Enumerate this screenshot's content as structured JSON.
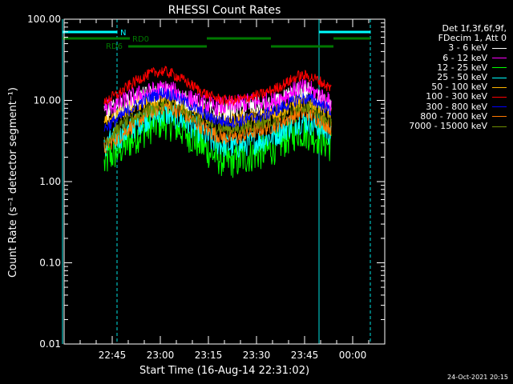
{
  "chart_data": {
    "type": "line",
    "title": "RHESSI Count Rates",
    "xlabel": "Start Time (16-Aug-14 22:31:02)",
    "ylabel": "Count Rate (s⁻¹ detector segment⁻¹)",
    "y_scale": "log",
    "ylim": [
      0.01,
      100.0
    ],
    "x_units": "minutes after 22:30",
    "xlim": [
      0,
      100
    ],
    "x_ticks": [
      {
        "x": 15,
        "label": "22:45"
      },
      {
        "x": 30,
        "label": "23:00"
      },
      {
        "x": 45,
        "label": "23:15"
      },
      {
        "x": 60,
        "label": "23:30"
      },
      {
        "x": 75,
        "label": "23:45"
      },
      {
        "x": 90,
        "label": "00:00"
      }
    ],
    "y_ticks": [
      {
        "y": 100,
        "label": "100.00"
      },
      {
        "y": 10,
        "label": "10.00"
      },
      {
        "y": 1,
        "label": "1.00"
      },
      {
        "y": 0.1,
        "label": "0.10"
      },
      {
        "y": 0.01,
        "label": "0.01"
      }
    ],
    "legend_header": [
      "Det 1f,3f,6f,9f,",
      "FDecim 1, Att 0"
    ],
    "legend_position": "right, outside plot",
    "x_samples": [
      12.5,
      14,
      17,
      20,
      24,
      28,
      31,
      34,
      38,
      42,
      46,
      50,
      54,
      58,
      62,
      66,
      70,
      73,
      76,
      79,
      82,
      83.3
    ],
    "series": [
      {
        "name": "3 - 6 keV",
        "color": "#ffffff",
        "values": [
          6.5,
          7.5,
          8.2,
          9.5,
          11,
          12,
          13,
          12,
          10,
          8.5,
          7.5,
          7.5,
          8,
          8.5,
          8.5,
          9,
          11,
          13,
          13,
          11,
          9,
          8.5
        ]
      },
      {
        "name": "6 - 12 keV",
        "color": "#ff00ff",
        "values": [
          8,
          8.5,
          9,
          10.5,
          12,
          13,
          14,
          13,
          11,
          9.5,
          8.5,
          8.5,
          9,
          9.5,
          9.5,
          10,
          12,
          14,
          14,
          12,
          10,
          9
        ]
      },
      {
        "name": "12 - 25 keV",
        "color": "#00ff00",
        "values": [
          1.6,
          2,
          2.4,
          3,
          4,
          5,
          5.5,
          5,
          4,
          3,
          2.2,
          1.8,
          1.8,
          2.1,
          2.3,
          2.7,
          3.5,
          4.2,
          4,
          3.5,
          3,
          2.8
        ]
      },
      {
        "name": "25 - 50 keV",
        "color": "#00ffff",
        "values": [
          2.5,
          3,
          3.5,
          4.2,
          5.5,
          6.5,
          7,
          6.5,
          5.5,
          4.2,
          3.2,
          2.8,
          2.7,
          3,
          3.3,
          3.8,
          4.8,
          5.5,
          5.5,
          4.8,
          4.2,
          3.8
        ]
      },
      {
        "name": "50 - 100 keV",
        "color": "#ffb400",
        "values": [
          5,
          6,
          7,
          8,
          9.5,
          10.5,
          11,
          10.5,
          9,
          7.5,
          6.5,
          6,
          6,
          6.5,
          6.8,
          7.2,
          8.5,
          10,
          10,
          9,
          7.5,
          7
        ]
      },
      {
        "name": "100 - 300 keV",
        "color": "#ff0000",
        "values": [
          9,
          10.5,
          12,
          15,
          19,
          22,
          23,
          21,
          17,
          13.5,
          11,
          10,
          10,
          11,
          12,
          14,
          17,
          20,
          20,
          18,
          15,
          14
        ]
      },
      {
        "name": "300 - 800 keV",
        "color": "#0000ff",
        "values": [
          4.5,
          5,
          6,
          7.5,
          9.5,
          11.5,
          12.5,
          11.5,
          9.5,
          7.5,
          6,
          5.5,
          5.5,
          6,
          6.5,
          7.5,
          9,
          10.5,
          10.5,
          9.5,
          8,
          7.5
        ]
      },
      {
        "name": "800 - 7000 keV",
        "color": "#ff7800",
        "values": [
          2.5,
          3,
          3.5,
          4.5,
          6,
          7.5,
          8.5,
          8,
          6.5,
          5,
          4,
          3.5,
          3.5,
          4,
          4.5,
          5,
          6,
          7,
          7,
          6,
          5,
          4.5
        ]
      },
      {
        "name": "7000 - 15000 keV",
        "color": "#6e8c00",
        "values": [
          3,
          3.5,
          4.5,
          5.5,
          7,
          8.5,
          9.5,
          9,
          7.5,
          6,
          5,
          4.5,
          4.5,
          5,
          5.5,
          6,
          7.5,
          8.5,
          8.5,
          7.5,
          6,
          5.5
        ]
      }
    ],
    "vertical_lines": [
      {
        "x": -0.5,
        "color": "#00e0e0",
        "style": "solid"
      },
      {
        "x": 16.5,
        "color": "#00e0e0",
        "style": "dashed"
      },
      {
        "x": 79.5,
        "color": "#00e0e0",
        "style": "solid"
      },
      {
        "x": 95.5,
        "color": "#00e0e0",
        "style": "dashed"
      }
    ],
    "flag_bars": [
      {
        "label": "N",
        "color": "#00ffff",
        "segments": [
          [
            -0.5,
            16.5
          ],
          [
            79.5,
            95.5
          ]
        ]
      },
      {
        "label": "RD0",
        "color": "#007800",
        "segments": [
          [
            -0.5,
            20.5
          ],
          [
            44.5,
            64.5
          ],
          [
            84,
            95.5
          ]
        ]
      },
      {
        "label": "RD6",
        "color": "#007800",
        "segments": [
          [
            20,
            44.5
          ],
          [
            64.5,
            84
          ]
        ]
      }
    ]
  },
  "legend": {
    "header_line1": "Det 1f,3f,6f,9f,",
    "header_line2": "FDecim 1, Att 0",
    "items": [
      "3 - 6 keV",
      "6 - 12 keV",
      "12 - 25 keV",
      "25 - 50 keV",
      "50 - 100 keV",
      "100 - 300 keV",
      "300 - 800 keV",
      "800 - 7000 keV",
      "7000 - 15000 keV"
    ]
  },
  "timestamp": "24-Oct-2021 20:15"
}
